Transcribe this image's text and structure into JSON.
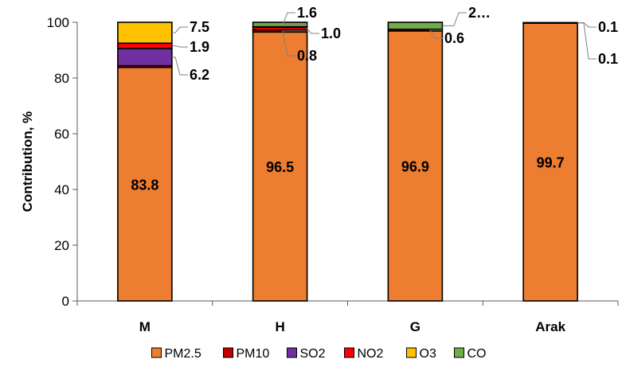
{
  "chart_data": {
    "type": "bar",
    "stacked": true,
    "categories": [
      "M",
      "H",
      "G",
      "Arak"
    ],
    "ylabel": "Contribution, %",
    "xlabel": "",
    "ylim": [
      0,
      100
    ],
    "yticks": [
      0,
      20,
      40,
      60,
      80,
      100
    ],
    "grid": false,
    "legend_position": "bottom",
    "series": [
      {
        "name": "PM2.5",
        "color": "#ED7D31",
        "values": [
          83.8,
          96.5,
          96.9,
          99.7
        ]
      },
      {
        "name": "PM10",
        "color": "#C00000",
        "values": [
          0.6,
          0.8,
          0.6,
          0.1
        ]
      },
      {
        "name": "SO2",
        "color": "#7030A0",
        "values": [
          6.2,
          0.0,
          0.0,
          0.0
        ]
      },
      {
        "name": "NO2",
        "color": "#FF0000",
        "values": [
          1.9,
          1.0,
          0.0,
          0.0
        ]
      },
      {
        "name": "O3",
        "color": "#FFC000",
        "values": [
          7.5,
          0.1,
          0.0,
          0.1
        ]
      },
      {
        "name": "CO",
        "color": "#70AD47",
        "values": [
          0.0,
          1.6,
          2.5,
          0.0
        ]
      }
    ],
    "inner_labels": [
      "83.8",
      "96.5",
      "96.9",
      "99.7"
    ],
    "callouts": [
      {
        "text": "7.5",
        "category": "M",
        "series": "O3"
      },
      {
        "text": "1.9",
        "category": "M",
        "series": "NO2"
      },
      {
        "text": "6.2",
        "category": "M",
        "series": "SO2"
      },
      {
        "text": "1.6",
        "category": "H",
        "series": "CO"
      },
      {
        "text": "1.0",
        "category": "H",
        "series": "NO2"
      },
      {
        "text": "0.8",
        "category": "H",
        "series": "PM10"
      },
      {
        "text": "2…",
        "category": "G",
        "series": "CO"
      },
      {
        "text": "0.6",
        "category": "G",
        "series": "PM10"
      },
      {
        "text": "0.1",
        "category": "Arak",
        "series": "O3"
      },
      {
        "text": "0.1",
        "category": "Arak",
        "series": "PM10"
      }
    ]
  }
}
